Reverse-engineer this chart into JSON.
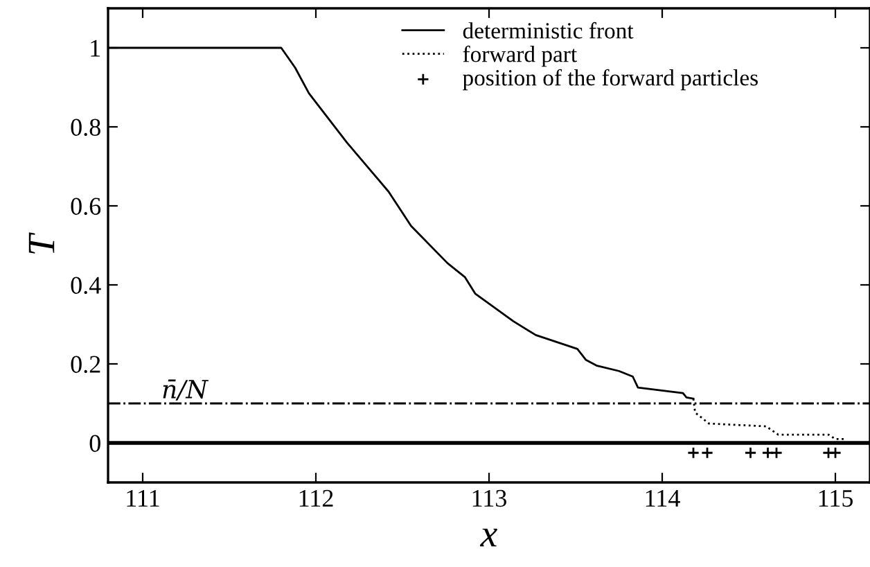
{
  "chart_data": {
    "type": "line",
    "xlabel": "x",
    "ylabel": "T",
    "xlim": [
      110.8,
      115.2
    ],
    "ylim": [
      -0.1,
      1.1
    ],
    "xticks": [
      111,
      112,
      113,
      114,
      115
    ],
    "yticks": [
      0,
      0.2,
      0.4,
      0.6,
      0.8,
      1
    ],
    "grid": false,
    "legend": "top",
    "marker": "none",
    "series": [
      {
        "name": "deterministic front",
        "color": "#000000",
        "line_style": "solid",
        "x": [
          110.8,
          111.8,
          111.88,
          111.96,
          112.18,
          112.42,
          112.55,
          112.76,
          112.86,
          112.92,
          113.14,
          113.27,
          113.51,
          113.56,
          113.62,
          113.75,
          113.83,
          113.86,
          114.12,
          114.14,
          114.18
        ],
        "values": [
          1,
          1,
          0.95,
          0.885,
          0.76,
          0.636,
          0.549,
          0.455,
          0.42,
          0.378,
          0.308,
          0.273,
          0.238,
          0.21,
          0.196,
          0.182,
          0.168,
          0.14,
          0.126,
          0.115,
          0.112
        ]
      },
      {
        "name": "forward part",
        "color": "#000000",
        "line_style": "dotted",
        "x": [
          114.18,
          114.19,
          114.27,
          114.6,
          114.67,
          114.96,
          115.0,
          115.05
        ],
        "values": [
          0.112,
          0.077,
          0.049,
          0.042,
          0.021,
          0.021,
          0.01,
          0.01
        ]
      },
      {
        "name": "position of the forward particles",
        "type": "scatter",
        "color": "#000000",
        "marker": "cross",
        "x": [
          114.18,
          114.26,
          114.51,
          114.61,
          114.66,
          114.96,
          115.0
        ],
        "values": [
          -0.025,
          -0.025,
          -0.025,
          -0.025,
          -0.025,
          -0.025,
          -0.025
        ]
      }
    ],
    "ref_lines": [
      {
        "axis": "y",
        "value": 0,
        "color": "#000000",
        "line_style": "solid"
      },
      {
        "axis": "y",
        "value": 0.1,
        "label": "n̄/N",
        "color": "#000000",
        "line_style": "dashdot"
      }
    ]
  }
}
